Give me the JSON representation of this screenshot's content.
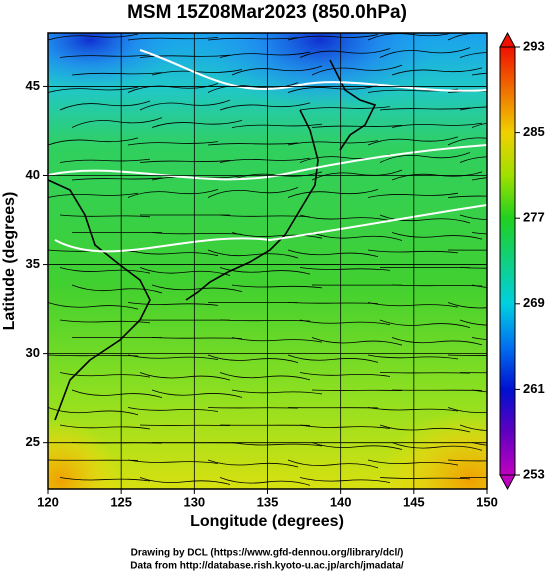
{
  "chart_data": {
    "type": "map",
    "title": "MSM 15Z08Mar2023 (850.0hPa)",
    "x_label": "Longitude (degrees)",
    "y_label": "Latitude  (degrees)",
    "xlim": [
      120,
      150
    ],
    "xticks": [
      120,
      125,
      130,
      135,
      140,
      145,
      150
    ],
    "ylim": [
      22.4,
      48
    ],
    "yticks": [
      25,
      30,
      35,
      40,
      45
    ],
    "grid": true,
    "colorbar": {
      "lim": [
        253,
        293
      ],
      "ticks": [
        253,
        261,
        269,
        277,
        285,
        293
      ]
    }
  },
  "footer": {
    "credit": "Drawing by DCL (https://www.gfd-dennou.org/library/dcl/)",
    "source": "Data from http://database.rish.kyoto-u.ac.jp/arch/jmadata/"
  }
}
